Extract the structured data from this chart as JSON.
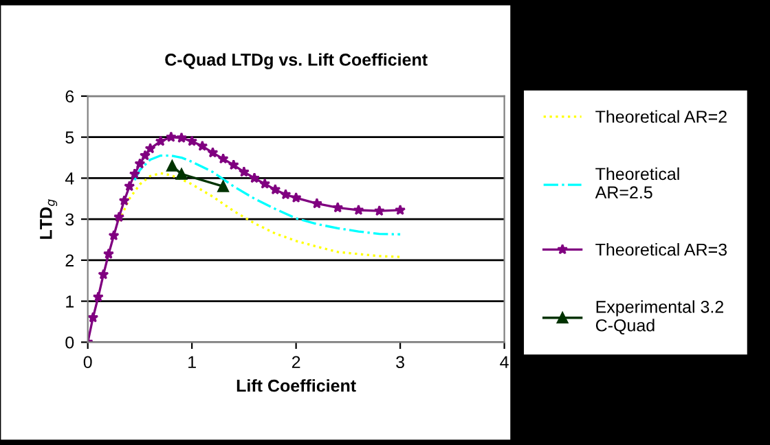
{
  "chart_data": {
    "type": "line",
    "title": "C-Quad LTDg vs. Lift Coefficient",
    "xlabel": "Lift Coefficient",
    "ylabel": "LTD$_{g}$",
    "xlim": [
      0,
      4
    ],
    "xticks": [
      0,
      1,
      2,
      3,
      4
    ],
    "ylim": [
      0,
      6
    ],
    "yticks": [
      0,
      1,
      2,
      3,
      4,
      5,
      6
    ],
    "grid": "y",
    "legend": "right",
    "series": [
      {
        "name": "Theoretical AR=2",
        "color": "#ffff00",
        "line_style": "dotted",
        "marker": "none",
        "x": [
          0.3,
          0.4,
          0.5,
          0.6,
          0.7,
          0.8,
          0.9,
          1.0,
          1.2,
          1.4,
          1.6,
          1.8,
          2.0,
          2.2,
          2.4,
          2.6,
          2.8,
          3.0
        ],
        "values": [
          2.95,
          3.5,
          3.85,
          4.05,
          4.12,
          4.07,
          3.97,
          3.85,
          3.55,
          3.2,
          2.9,
          2.65,
          2.47,
          2.33,
          2.2,
          2.15,
          2.1,
          2.08
        ]
      },
      {
        "name": "Theoretical\nAR=2.5",
        "color": "#00ffff",
        "line_style": "dashdot",
        "marker": "none",
        "x": [
          0.45,
          0.5,
          0.6,
          0.7,
          0.8,
          0.9,
          1.0,
          1.2,
          1.4,
          1.6,
          1.8,
          2.0,
          2.2,
          2.4,
          2.6,
          2.8,
          3.0
        ],
        "values": [
          3.95,
          4.2,
          4.45,
          4.55,
          4.55,
          4.5,
          4.4,
          4.15,
          3.8,
          3.5,
          3.25,
          3.02,
          2.88,
          2.78,
          2.7,
          2.64,
          2.63
        ]
      },
      {
        "name": "Theoretical AR=3",
        "color": "#800080",
        "line_style": "solid",
        "marker": "star",
        "x": [
          0,
          0.05,
          0.1,
          0.15,
          0.2,
          0.25,
          0.3,
          0.35,
          0.4,
          0.45,
          0.5,
          0.55,
          0.6,
          0.7,
          0.8,
          0.9,
          1.0,
          1.1,
          1.2,
          1.3,
          1.4,
          1.5,
          1.6,
          1.7,
          1.8,
          1.9,
          2.0,
          2.2,
          2.4,
          2.6,
          2.8,
          3.0
        ],
        "values": [
          0,
          0.6,
          1.1,
          1.65,
          2.15,
          2.6,
          3.05,
          3.45,
          3.8,
          4.1,
          4.35,
          4.55,
          4.72,
          4.9,
          5.0,
          4.98,
          4.9,
          4.78,
          4.62,
          4.47,
          4.32,
          4.15,
          4.0,
          3.86,
          3.72,
          3.6,
          3.52,
          3.38,
          3.28,
          3.22,
          3.2,
          3.22
        ]
      },
      {
        "name": "Experimental 3.2\nC-Quad",
        "color": "#003300",
        "line_style": "solid",
        "marker": "triangle",
        "x": [
          0.81,
          0.9,
          1.3
        ],
        "values": [
          4.3,
          4.1,
          3.8
        ]
      }
    ]
  }
}
